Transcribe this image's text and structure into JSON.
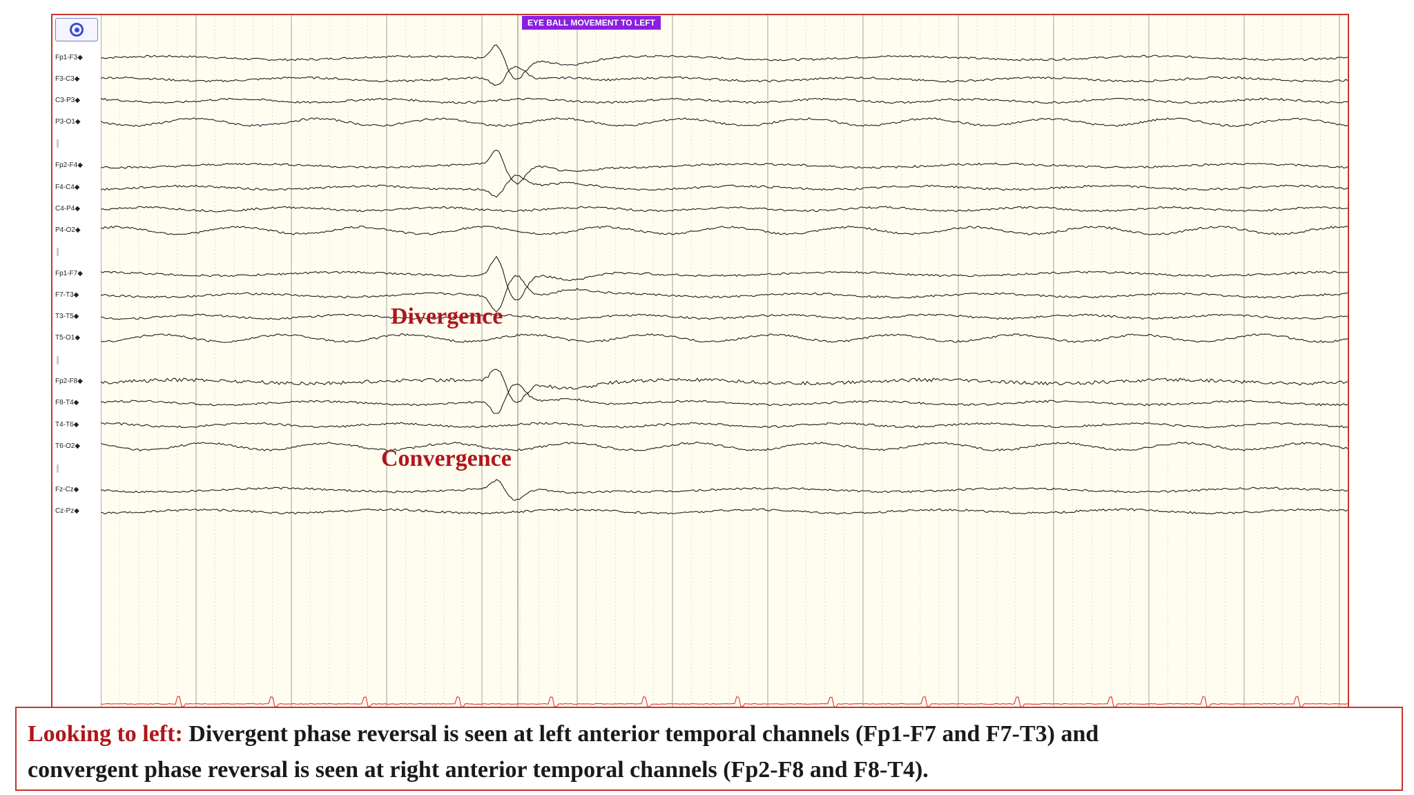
{
  "event_marker": {
    "label": "EYE BALL MOVEMENT TO LEFT"
  },
  "channels": [
    {
      "label": "Fp1-F3",
      "group": 1
    },
    {
      "label": "F3-C3",
      "group": 1
    },
    {
      "label": "C3-P3",
      "group": 1
    },
    {
      "label": "P3-O1",
      "group": 1
    },
    {
      "label": "Fp2-F4",
      "group": 2
    },
    {
      "label": "F4-C4",
      "group": 2
    },
    {
      "label": "C4-P4",
      "group": 2
    },
    {
      "label": "P4-O2",
      "group": 2
    },
    {
      "label": "Fp1-F7",
      "group": 3
    },
    {
      "label": "F7-T3",
      "group": 3
    },
    {
      "label": "T3-T5",
      "group": 3
    },
    {
      "label": "T5-O1",
      "group": 3
    },
    {
      "label": "Fp2-F8",
      "group": 4
    },
    {
      "label": "F8-T4",
      "group": 4
    },
    {
      "label": "T4-T6",
      "group": 4
    },
    {
      "label": "T6-O2",
      "group": 4
    },
    {
      "label": "Fz-Cz",
      "group": 5
    },
    {
      "label": "Cz-Pz",
      "group": 5
    }
  ],
  "annotations": {
    "divergence": "Divergence",
    "convergence": "Convergence"
  },
  "caption": {
    "lead": "Looking to left:",
    "line1_rest": " Divergent phase reversal is seen at left anterior temporal channels (Fp1-F7 and F7-T3) and",
    "line2": "convergent phase reversal is seen at right anterior temporal channels (Fp2-F8 and F8-T4)."
  },
  "colors": {
    "frame_border": "#c8322e",
    "event_banner": "#8a1fe0",
    "annotation_text": "#b0161c",
    "trace": "#1a1a1a",
    "ecg_trace": "#e03030",
    "background": "#fffdf0"
  },
  "icons": {
    "top_button": "target-ring-icon"
  }
}
